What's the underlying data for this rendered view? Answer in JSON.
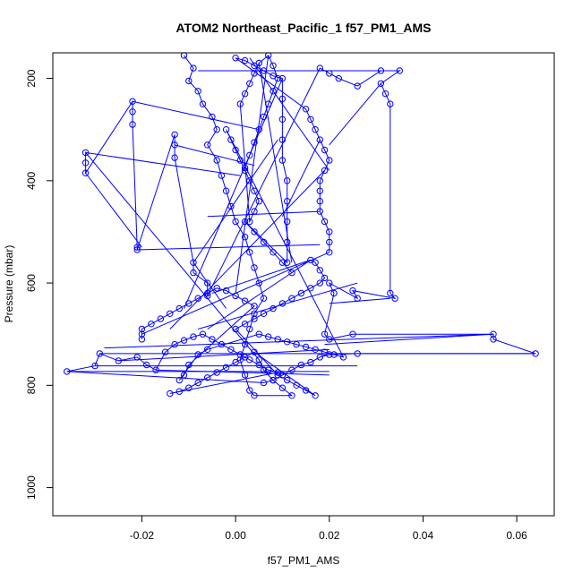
{
  "chart_data": {
    "type": "scatter",
    "title": "ATOM2 Northeast_Pacific_1 f57_PM1_AMS",
    "xlabel": "f57_PM1_AMS",
    "ylabel": "Pressure (mbar)",
    "xlim": [
      -0.039,
      0.068
    ],
    "ylim": [
      1055,
      150
    ],
    "y_reversed": true,
    "x_ticks": [
      -0.02,
      0.0,
      0.02,
      0.04,
      0.06
    ],
    "x_tick_labels": [
      "-0.02",
      "0.00",
      "0.02",
      "0.04",
      "0.06"
    ],
    "y_ticks": [
      200,
      400,
      600,
      800,
      1000
    ],
    "y_tick_labels": [
      "200",
      "400",
      "600",
      "800",
      "1000"
    ],
    "grid": false,
    "legend": "none",
    "series": [
      {
        "color": "#0000ff",
        "points": [
          [
            -0.011,
            155
          ],
          [
            -0.009,
            180
          ],
          [
            -0.01,
            205
          ],
          [
            -0.008,
            225
          ],
          [
            -0.007,
            250
          ],
          [
            -0.005,
            275
          ],
          [
            -0.004,
            300
          ],
          [
            -0.006,
            330
          ],
          [
            -0.004,
            360
          ],
          [
            -0.003,
            390
          ],
          [
            -0.002,
            420
          ],
          [
            -0.001,
            450
          ],
          [
            0.0,
            480
          ],
          [
            0.002,
            510
          ],
          [
            0.003,
            540
          ],
          [
            0.004,
            570
          ],
          [
            0.005,
            600
          ],
          [
            0.006,
            630
          ],
          [
            0.004,
            660
          ],
          [
            0.003,
            690
          ],
          [
            0.002,
            720
          ],
          [
            0.001,
            750
          ],
          [
            0.002,
            780
          ],
          [
            0.003,
            810
          ],
          [
            0.004,
            820
          ],
          [
            0.012,
            820
          ],
          [
            0.01,
            805
          ],
          [
            0.008,
            790
          ],
          [
            0.006,
            770
          ],
          [
            0.005,
            750
          ],
          [
            -0.032,
            345
          ],
          [
            -0.032,
            365
          ],
          [
            -0.032,
            385
          ],
          [
            -0.022,
            245
          ],
          [
            -0.022,
            265
          ],
          [
            -0.022,
            290
          ],
          [
            -0.021,
            530
          ],
          [
            -0.021,
            535
          ],
          [
            -0.013,
            310
          ],
          [
            -0.013,
            330
          ],
          [
            -0.013,
            355
          ],
          [
            -0.009,
            560
          ],
          [
            -0.009,
            580
          ],
          [
            -0.006,
            600
          ],
          [
            -0.006,
            625
          ],
          [
            0.018,
            180
          ],
          [
            0.02,
            190
          ],
          [
            0.022,
            200
          ],
          [
            0.026,
            215
          ],
          [
            0.031,
            185
          ],
          [
            0.035,
            185
          ],
          [
            0.031,
            210
          ],
          [
            0.032,
            230
          ],
          [
            0.033,
            250
          ],
          [
            0.033,
            620
          ],
          [
            0.034,
            630
          ],
          [
            0.025,
            615
          ],
          [
            0.026,
            630
          ],
          [
            0.02,
            600
          ],
          [
            0.021,
            620
          ],
          [
            0.019,
            700
          ],
          [
            0.02,
            710
          ],
          [
            0.025,
            700
          ],
          [
            0.055,
            700
          ],
          [
            0.055,
            710
          ],
          [
            0.064,
            738
          ],
          [
            0.026,
            738
          ],
          [
            0.02,
            740
          ],
          [
            0.018,
            745
          ],
          [
            0.016,
            755
          ],
          [
            0.014,
            760
          ],
          [
            0.012,
            770
          ],
          [
            0.01,
            780
          ],
          [
            0.008,
            790
          ],
          [
            0.006,
            795
          ],
          [
            -0.036,
            773
          ],
          [
            -0.03,
            762
          ],
          [
            -0.029,
            738
          ],
          [
            -0.025,
            752
          ],
          [
            -0.021,
            745
          ],
          [
            -0.019,
            760
          ],
          [
            -0.017,
            770
          ],
          [
            -0.015,
            735
          ],
          [
            -0.013,
            720
          ],
          [
            -0.011,
            712
          ],
          [
            -0.009,
            705
          ],
          [
            -0.007,
            700
          ],
          [
            -0.005,
            710
          ],
          [
            -0.003,
            720
          ],
          [
            -0.001,
            730
          ],
          [
            0.001,
            740
          ],
          [
            0.003,
            750
          ],
          [
            0.005,
            760
          ],
          [
            0.007,
            770
          ],
          [
            0.009,
            775
          ],
          [
            -0.014,
            816
          ],
          [
            -0.012,
            812
          ],
          [
            -0.01,
            805
          ],
          [
            -0.008,
            795
          ],
          [
            -0.006,
            785
          ],
          [
            -0.004,
            775
          ],
          [
            -0.002,
            765
          ],
          [
            0.0,
            755
          ],
          [
            0.002,
            745
          ],
          [
            0.004,
            735
          ],
          [
            0.017,
            820
          ],
          [
            0.015,
            810
          ],
          [
            0.013,
            800
          ],
          [
            0.011,
            790
          ],
          [
            0.009,
            780
          ],
          [
            0.0,
            690
          ],
          [
            0.002,
            680
          ],
          [
            0.004,
            670
          ],
          [
            0.006,
            660
          ],
          [
            0.008,
            650
          ],
          [
            0.01,
            640
          ],
          [
            0.012,
            630
          ],
          [
            0.014,
            620
          ],
          [
            0.016,
            610
          ],
          [
            0.018,
            600
          ],
          [
            0.019,
            590
          ],
          [
            0.018,
            575
          ],
          [
            0.017,
            560
          ],
          [
            0.016,
            555
          ],
          [
            0.012,
            580
          ],
          [
            0.01,
            560
          ],
          [
            0.008,
            540
          ],
          [
            0.006,
            520
          ],
          [
            0.004,
            500
          ],
          [
            0.002,
            480
          ],
          [
            0.011,
            560
          ],
          [
            0.011,
            520
          ],
          [
            0.011,
            480
          ],
          [
            0.011,
            440
          ],
          [
            0.011,
            400
          ],
          [
            0.01,
            360
          ],
          [
            0.01,
            320
          ],
          [
            0.01,
            280
          ],
          [
            0.01,
            240
          ],
          [
            0.01,
            200
          ],
          [
            0.008,
            195
          ],
          [
            0.006,
            185
          ],
          [
            0.004,
            175
          ],
          [
            0.002,
            165
          ],
          [
            0.0,
            160
          ],
          [
            0.015,
            260
          ],
          [
            0.016,
            280
          ],
          [
            0.017,
            300
          ],
          [
            0.018,
            320
          ],
          [
            0.019,
            340
          ],
          [
            0.02,
            360
          ],
          [
            0.019,
            380
          ],
          [
            0.018,
            400
          ],
          [
            0.018,
            420
          ],
          [
            0.018,
            440
          ],
          [
            0.018,
            460
          ],
          [
            0.019,
            480
          ],
          [
            0.02,
            500
          ],
          [
            0.02,
            520
          ],
          [
            0.02,
            540
          ],
          [
            -0.02,
            700
          ],
          [
            -0.02,
            710
          ],
          [
            -0.02,
            690
          ],
          [
            -0.018,
            680
          ],
          [
            -0.016,
            670
          ],
          [
            -0.014,
            660
          ],
          [
            -0.012,
            650
          ],
          [
            -0.01,
            640
          ],
          [
            -0.008,
            630
          ],
          [
            -0.006,
            620
          ],
          [
            -0.004,
            610
          ],
          [
            -0.002,
            615
          ],
          [
            0.0,
            625
          ],
          [
            0.002,
            635
          ],
          [
            0.004,
            645
          ],
          [
            -0.01,
            760
          ],
          [
            -0.011,
            780
          ],
          [
            -0.012,
            790
          ],
          [
            -0.008,
            740
          ],
          [
            -0.006,
            730
          ],
          [
            0.005,
            700
          ],
          [
            0.007,
            705
          ],
          [
            0.009,
            710
          ],
          [
            0.011,
            715
          ],
          [
            0.013,
            720
          ],
          [
            0.015,
            725
          ],
          [
            0.017,
            730
          ],
          [
            0.019,
            735
          ],
          [
            0.021,
            740
          ],
          [
            0.023,
            745
          ],
          [
            -0.002,
            300
          ],
          [
            -0.001,
            320
          ],
          [
            0.0,
            340
          ],
          [
            0.001,
            360
          ],
          [
            0.002,
            380
          ],
          [
            0.003,
            400
          ],
          [
            0.004,
            420
          ],
          [
            0.005,
            440
          ],
          [
            0.004,
            460
          ],
          [
            0.003,
            480
          ],
          [
            0.001,
            250
          ],
          [
            0.002,
            230
          ],
          [
            0.003,
            210
          ],
          [
            0.004,
            190
          ],
          [
            0.005,
            170
          ],
          [
            0.007,
            155
          ],
          [
            0.008,
            175
          ],
          [
            0.009,
            200
          ],
          [
            0.008,
            225
          ],
          [
            0.007,
            250
          ],
          [
            0.006,
            275
          ],
          [
            0.005,
            300
          ],
          [
            0.004,
            325
          ],
          [
            0.003,
            350
          ],
          [
            0.002,
            375
          ]
        ]
      }
    ],
    "chains": [
      [
        [
          -0.036,
          773
        ],
        [
          0.02,
          773
        ]
      ],
      [
        [
          -0.03,
          762
        ],
        [
          0.026,
          762
        ]
      ],
      [
        [
          -0.029,
          738
        ],
        [
          0.064,
          738
        ]
      ],
      [
        [
          -0.028,
          727
        ],
        [
          0.055,
          700
        ]
      ],
      [
        [
          -0.032,
          345
        ],
        [
          0.001,
          390
        ]
      ],
      [
        [
          -0.032,
          385
        ],
        [
          -0.02,
          530
        ]
      ],
      [
        [
          -0.021,
          535
        ],
        [
          0.018,
          525
        ]
      ],
      [
        [
          -0.022,
          245
        ],
        [
          0.005,
          300
        ]
      ],
      [
        [
          -0.013,
          330
        ],
        [
          0.004,
          370
        ]
      ],
      [
        [
          0.031,
          185
        ],
        [
          0.0,
          185
        ]
      ],
      [
        [
          0.035,
          185
        ],
        [
          -0.008,
          185
        ]
      ],
      [
        [
          0.031,
          210
        ],
        [
          0.02,
          330
        ]
      ],
      [
        [
          0.019,
          380
        ],
        [
          -0.014,
          690
        ]
      ],
      [
        [
          0.01,
          200
        ],
        [
          -0.011,
          650
        ]
      ],
      [
        [
          0.007,
          155
        ],
        [
          0.0,
          620
        ]
      ],
      [
        [
          0.005,
          170
        ],
        [
          0.012,
          560
        ]
      ],
      [
        [
          0.033,
          630
        ],
        [
          0.02,
          640
        ]
      ],
      [
        [
          0.055,
          700
        ],
        [
          0.019,
          720
        ]
      ],
      [
        [
          0.02,
          730
        ],
        [
          -0.025,
          752
        ]
      ],
      [
        [
          -0.017,
          770
        ],
        [
          0.02,
          780
        ]
      ],
      [
        [
          0.012,
          580
        ],
        [
          -0.006,
          690
        ]
      ],
      [
        [
          -0.009,
          560
        ],
        [
          -0.002,
          650
        ]
      ],
      [
        [
          0.018,
          460
        ],
        [
          -0.006,
          470
        ]
      ],
      [
        [
          0.016,
          555
        ],
        [
          -0.005,
          620
        ]
      ],
      [
        [
          0.003,
          160
        ],
        [
          0.02,
          380
        ]
      ],
      [
        [
          0.026,
          600
        ],
        [
          -0.008,
          690
        ]
      ],
      [
        [
          0.009,
          320
        ],
        [
          -0.009,
          560
        ]
      ],
      [
        [
          0.018,
          320
        ],
        [
          0.01,
          470
        ]
      ]
    ]
  }
}
